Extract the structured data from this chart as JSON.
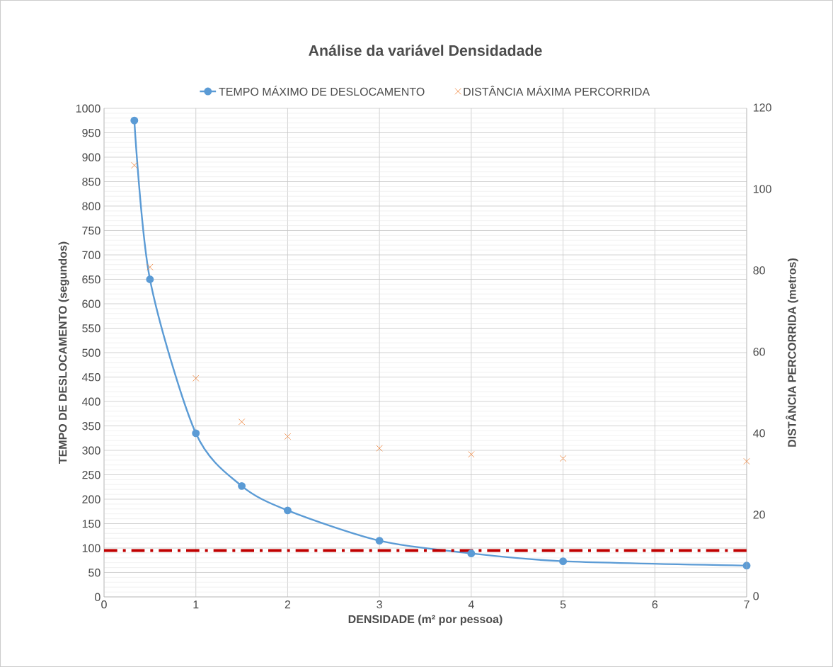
{
  "chart_data": {
    "type": "line",
    "title": "Análise da variável Densidadade",
    "xlabel": "DENSIDADE  (m² por pessoa)",
    "ylabel": "TEMPO DE DESLOCAMENTO  (segundos)",
    "y2label": "DISTÂNCIA  PERCORRIDA  (metros)",
    "x": [
      0.33,
      0.5,
      1,
      1.5,
      2,
      3,
      4,
      5,
      7
    ],
    "series": [
      {
        "name": "TEMPO MÁXIMO DE DESLOCAMENTO",
        "type": "line",
        "color": "#5b9bd5",
        "marker": "circle",
        "values": [
          975,
          650,
          335,
          227,
          177,
          115,
          89,
          73,
          64
        ]
      },
      {
        "name": "DISTÂNCIA MÁXIMA PERCORRIDA",
        "type": "scatter",
        "axis": "y2",
        "color": "#ed7d31",
        "marker": "cross",
        "values": [
          106,
          81,
          53.7,
          43,
          39.4,
          36.5,
          35,
          34,
          33.3
        ]
      }
    ],
    "xlim": [
      0,
      7
    ],
    "xticks": [
      0,
      1,
      2,
      3,
      4,
      5,
      6,
      7
    ],
    "ylim": [
      0,
      1000
    ],
    "yticks": [
      0,
      50,
      100,
      150,
      200,
      250,
      300,
      350,
      400,
      450,
      500,
      550,
      600,
      650,
      700,
      750,
      800,
      850,
      900,
      950,
      1000
    ],
    "y2lim": [
      0,
      120
    ],
    "y2ticks": [
      0,
      20,
      40,
      60,
      80,
      100,
      120
    ],
    "ref_lines": [
      {
        "axis": "y",
        "value": 95,
        "color": "#c00000",
        "line_style": "dashdot"
      }
    ],
    "grid": true,
    "legend": "top"
  }
}
